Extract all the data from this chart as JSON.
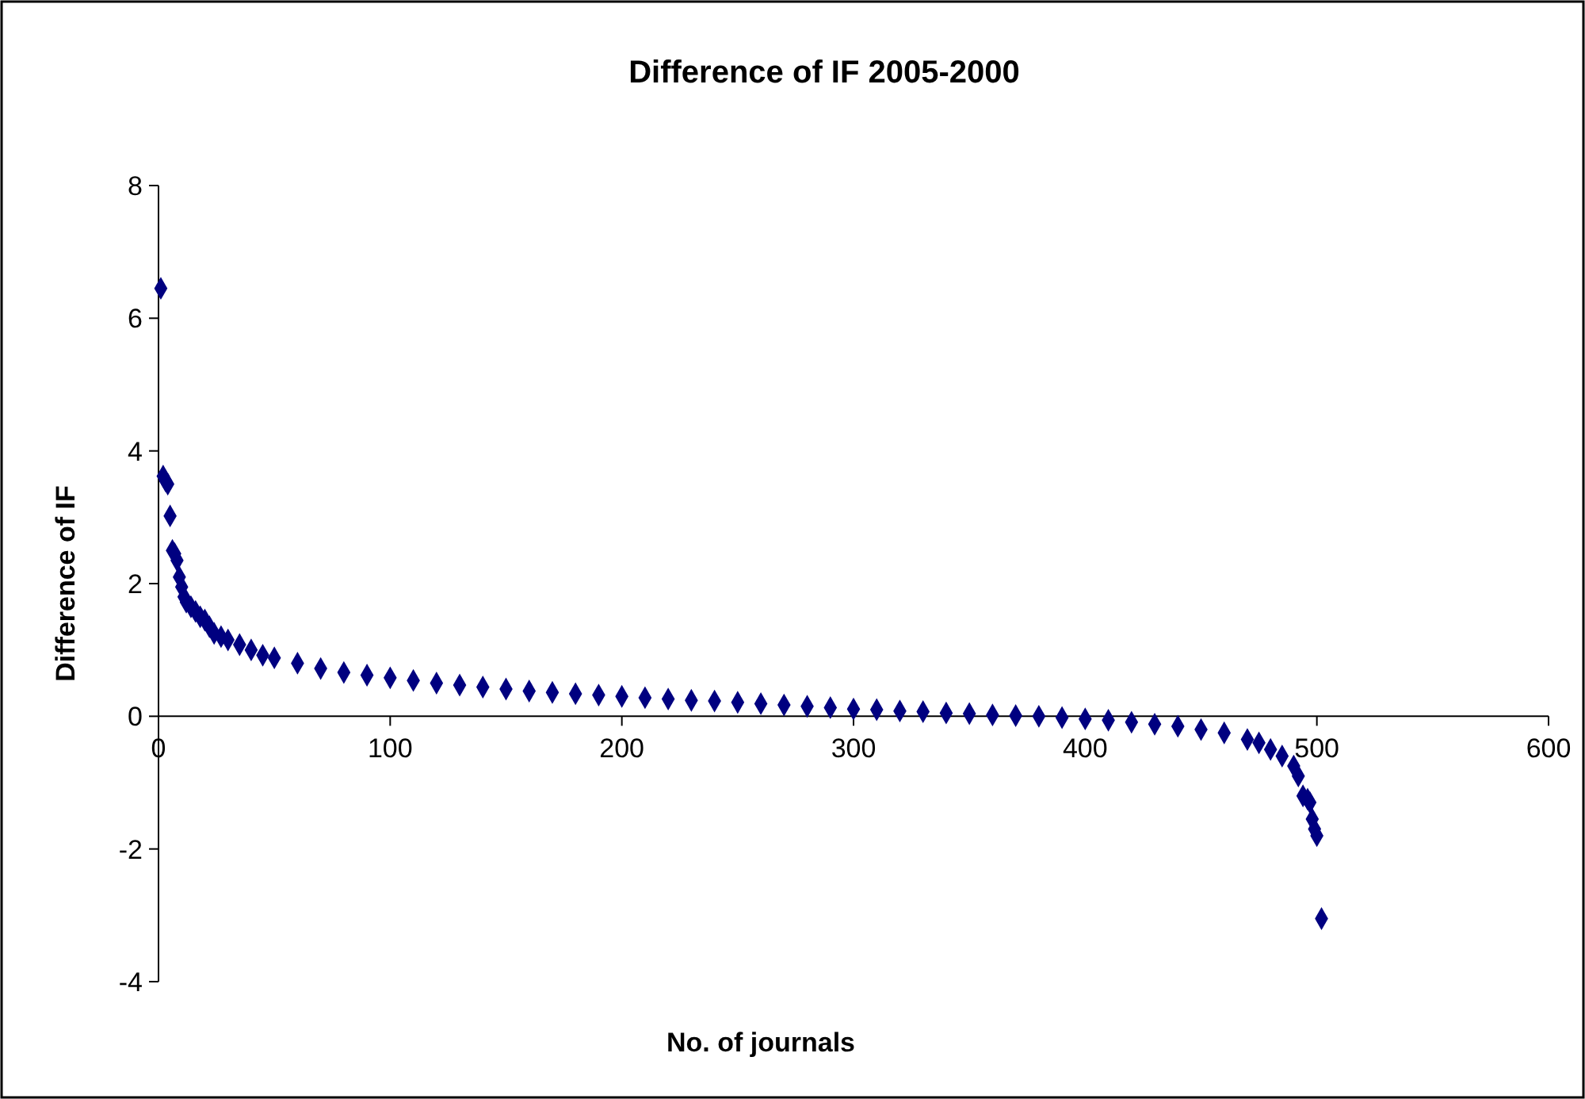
{
  "chart_data": {
    "type": "scatter",
    "title": "Difference of IF 2005-2000",
    "xlabel": "No. of journals",
    "ylabel": "Difference of IF",
    "marker": "diamond",
    "xlim": [
      0,
      600
    ],
    "xticks": [
      0,
      100,
      200,
      300,
      400,
      500,
      600
    ],
    "ylim": [
      -4,
      8
    ],
    "yticks": [
      -4,
      -2,
      0,
      2,
      4,
      6,
      8
    ],
    "series": [
      {
        "color": "#000080",
        "x": [
          1,
          2,
          3,
          4,
          5,
          6,
          7,
          8,
          9,
          10,
          11,
          12,
          14,
          16,
          18,
          20,
          22,
          24,
          27,
          30,
          35,
          40,
          45,
          50,
          60,
          70,
          80,
          90,
          100,
          110,
          120,
          130,
          140,
          150,
          160,
          170,
          180,
          190,
          200,
          210,
          220,
          230,
          240,
          250,
          260,
          270,
          280,
          290,
          300,
          310,
          320,
          330,
          340,
          350,
          360,
          370,
          380,
          390,
          400,
          410,
          420,
          430,
          440,
          450,
          460,
          470,
          475,
          480,
          485,
          490,
          492,
          494,
          496,
          497,
          498,
          499,
          500,
          502
        ],
        "values": [
          6.45,
          3.62,
          3.55,
          3.5,
          3.02,
          2.5,
          2.45,
          2.35,
          2.1,
          1.95,
          1.8,
          1.72,
          1.65,
          1.58,
          1.5,
          1.45,
          1.35,
          1.25,
          1.2,
          1.15,
          1.08,
          1.0,
          0.92,
          0.88,
          0.8,
          0.72,
          0.66,
          0.62,
          0.58,
          0.54,
          0.5,
          0.47,
          0.44,
          0.41,
          0.38,
          0.36,
          0.34,
          0.32,
          0.3,
          0.28,
          0.26,
          0.24,
          0.23,
          0.21,
          0.19,
          0.17,
          0.15,
          0.13,
          0.11,
          0.1,
          0.08,
          0.07,
          0.05,
          0.04,
          0.02,
          0.01,
          0,
          -0.02,
          -0.04,
          -0.06,
          -0.09,
          -0.12,
          -0.15,
          -0.2,
          -0.25,
          -0.35,
          -0.4,
          -0.5,
          -0.6,
          -0.75,
          -0.9,
          -1.2,
          -1.25,
          -1.3,
          -1.55,
          -1.7,
          -1.8,
          -3.05
        ]
      }
    ]
  }
}
